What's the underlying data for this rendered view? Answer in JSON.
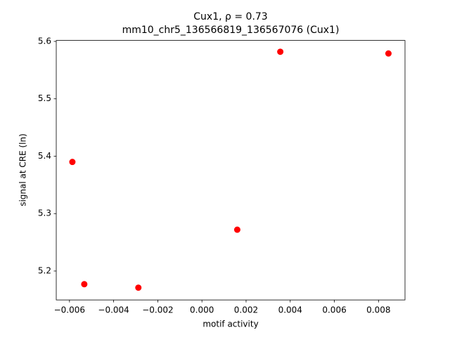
{
  "chart_data": {
    "type": "scatter",
    "title": "Cux1, ρ = 0.73",
    "subtitle": "mm10_chr5_136566819_136567076 (Cux1)",
    "x_label": "motif activity",
    "y_label": "signal at CRE (ln)",
    "color": "#ff0000",
    "x": [
      -0.00587,
      -0.00533,
      -0.00288,
      0.0016,
      0.00355,
      0.00845
    ],
    "values": [
      5.39,
      5.177,
      5.171,
      5.272,
      5.582,
      5.579
    ],
    "xlim": [
      -0.0066,
      0.0092
    ],
    "ylim": [
      5.1496,
      5.6017
    ],
    "xticks": [
      {
        "value": -0.006,
        "label": "−0.006"
      },
      {
        "value": -0.004,
        "label": "−0.004"
      },
      {
        "value": -0.002,
        "label": "−0.002"
      },
      {
        "value": 0,
        "label": "0.000"
      },
      {
        "value": 0.002,
        "label": "0.002"
      },
      {
        "value": 0.004,
        "label": "0.004"
      },
      {
        "value": 0.006,
        "label": "0.006"
      },
      {
        "value": 0.008,
        "label": "0.008"
      }
    ],
    "yticks": [
      5.2,
      5.3,
      5.4,
      5.5,
      5.6
    ],
    "grid": false
  }
}
